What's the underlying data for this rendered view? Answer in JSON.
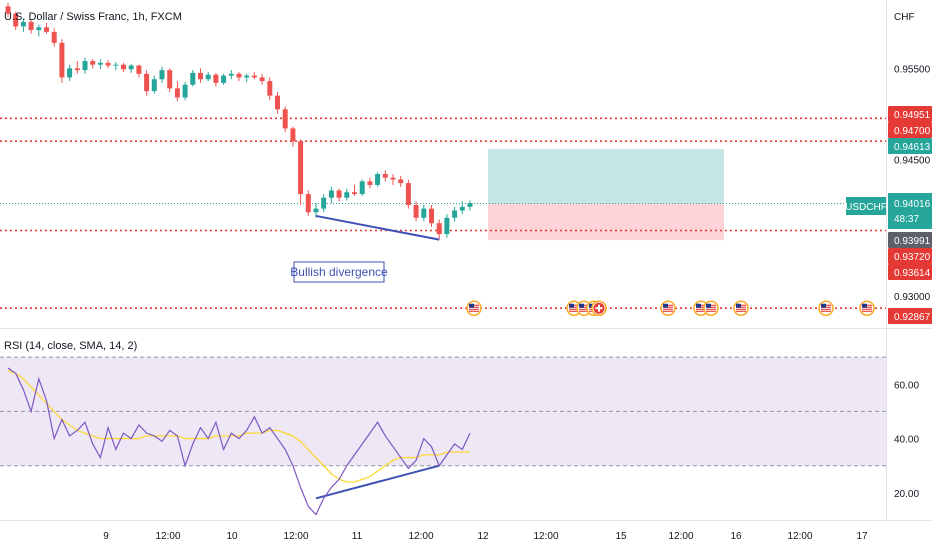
{
  "header": {
    "symbol_title": "U.S. Dollar / Swiss Franc, 1h, FXCM",
    "currency": "CHF"
  },
  "colors": {
    "up": "#26a69a",
    "down": "#ef5350",
    "red_line": "#e53935",
    "profit_zone": "#b2dfdb",
    "loss_zone": "#ffcdd2",
    "divergence": "#3f51b5",
    "rsi_line": "#7e57c2",
    "rsi_ma": "#fdd835",
    "rsi_band": "#ede7f6",
    "price_line": "#26a69a"
  },
  "annotations": {
    "bullish_divergence": "Bullish divergence"
  },
  "rsi": {
    "title": "RSI (14, close, SMA, 14, 2)",
    "ticks": [
      "60.00",
      "40.00",
      "20.00"
    ]
  },
  "price_axis": {
    "ticks": [
      {
        "label": "0.95500",
        "value": 0.955
      },
      {
        "label": "0.94500",
        "value": 0.945
      },
      {
        "label": "0.93000",
        "value": 0.93
      }
    ]
  },
  "price_tags": [
    {
      "label": "0.94951",
      "value": 0.94951,
      "kind": "red"
    },
    {
      "label": "0.94700",
      "value": 0.947,
      "kind": "red"
    },
    {
      "label": "0.94613",
      "value": 0.94613,
      "kind": "green"
    },
    {
      "label": "0.93991",
      "value": 0.93991,
      "kind": "gray"
    },
    {
      "label": "0.93720",
      "value": 0.9372,
      "kind": "red"
    },
    {
      "label": "0.93614",
      "value": 0.93614,
      "kind": "red"
    },
    {
      "label": "0.92867",
      "value": 0.92867,
      "kind": "red"
    }
  ],
  "current_price": {
    "symbol": "USDCHF",
    "price": "0.94016",
    "countdown": "48:37"
  },
  "time_axis": [
    "9",
    "12:00",
    "10",
    "12:00",
    "11",
    "12:00",
    "12",
    "12:00",
    "15",
    "12:00",
    "16",
    "12:00",
    "17"
  ],
  "event_icons": [
    "us-flag",
    "us-flag",
    "us-flag",
    "us-flag",
    "swiss-flag",
    "us-flag",
    "us-flag",
    "us-flag",
    "us-flag",
    "us-flag",
    "us-flag"
  ],
  "chart_data": {
    "type": "candlestick",
    "title": "U.S. Dollar / Swiss Franc, 1h, FXCM",
    "ylabel": "CHF",
    "ylim": [
      0.9265,
      0.9625
    ],
    "position": {
      "entry": 0.94016,
      "target": 0.94613,
      "stop": 0.93614
    },
    "hlines": [
      0.94951,
      0.947,
      0.9372,
      0.92867
    ],
    "series": [
      {
        "name": "candles",
        "values": [
          [
            0.9618,
            0.9622,
            0.9606,
            0.961
          ],
          [
            0.961,
            0.9612,
            0.9592,
            0.9596
          ],
          [
            0.9596,
            0.9605,
            0.959,
            0.9601
          ],
          [
            0.9601,
            0.9603,
            0.9588,
            0.9592
          ],
          [
            0.9592,
            0.9598,
            0.9585,
            0.9595
          ],
          [
            0.9595,
            0.96,
            0.9588,
            0.959
          ],
          [
            0.959,
            0.9594,
            0.9574,
            0.9578
          ],
          [
            0.9578,
            0.9582,
            0.9534,
            0.954
          ],
          [
            0.954,
            0.9554,
            0.9536,
            0.955
          ],
          [
            0.955,
            0.9558,
            0.9544,
            0.9548
          ],
          [
            0.9548,
            0.9562,
            0.9544,
            0.9558
          ],
          [
            0.9558,
            0.956,
            0.955,
            0.9554
          ],
          [
            0.9554,
            0.956,
            0.9549,
            0.9556
          ],
          [
            0.9556,
            0.9559,
            0.955,
            0.9553
          ],
          [
            0.9553,
            0.9557,
            0.9548,
            0.9554
          ],
          [
            0.9554,
            0.9556,
            0.9546,
            0.9549
          ],
          [
            0.9549,
            0.9555,
            0.9545,
            0.9553
          ],
          [
            0.9553,
            0.9554,
            0.954,
            0.9544
          ],
          [
            0.9544,
            0.9548,
            0.952,
            0.9525
          ],
          [
            0.9525,
            0.9542,
            0.9522,
            0.9538
          ],
          [
            0.9538,
            0.9552,
            0.9534,
            0.9548
          ],
          [
            0.9548,
            0.955,
            0.9524,
            0.9528
          ],
          [
            0.9528,
            0.9536,
            0.9514,
            0.9518
          ],
          [
            0.9518,
            0.9535,
            0.9515,
            0.9532
          ],
          [
            0.9532,
            0.9548,
            0.953,
            0.9545
          ],
          [
            0.9545,
            0.955,
            0.9534,
            0.9538
          ],
          [
            0.9538,
            0.9546,
            0.9536,
            0.9543
          ],
          [
            0.9543,
            0.9545,
            0.953,
            0.9534
          ],
          [
            0.9534,
            0.9544,
            0.9532,
            0.9542
          ],
          [
            0.9542,
            0.9548,
            0.9538,
            0.9544
          ],
          [
            0.9544,
            0.9546,
            0.9536,
            0.954
          ],
          [
            0.954,
            0.9544,
            0.9535,
            0.9542
          ],
          [
            0.9542,
            0.9546,
            0.9538,
            0.954
          ],
          [
            0.954,
            0.9544,
            0.9532,
            0.9536
          ],
          [
            0.9536,
            0.954,
            0.9515,
            0.952
          ],
          [
            0.952,
            0.9524,
            0.95,
            0.9505
          ],
          [
            0.9505,
            0.9508,
            0.948,
            0.9484
          ],
          [
            0.9484,
            0.9486,
            0.9464,
            0.947
          ],
          [
            0.947,
            0.9472,
            0.94,
            0.9412
          ],
          [
            0.9412,
            0.9416,
            0.9388,
            0.9392
          ],
          [
            0.9392,
            0.9402,
            0.9386,
            0.9396
          ],
          [
            0.9396,
            0.9412,
            0.9392,
            0.9408
          ],
          [
            0.9408,
            0.942,
            0.9402,
            0.9416
          ],
          [
            0.9416,
            0.9418,
            0.9404,
            0.9408
          ],
          [
            0.9408,
            0.9418,
            0.9405,
            0.9414
          ],
          [
            0.9414,
            0.9422,
            0.941,
            0.9412
          ],
          [
            0.9412,
            0.9428,
            0.941,
            0.9426
          ],
          [
            0.9426,
            0.943,
            0.9418,
            0.9422
          ],
          [
            0.9422,
            0.9436,
            0.942,
            0.9434
          ],
          [
            0.9434,
            0.9438,
            0.9426,
            0.943
          ],
          [
            0.943,
            0.9434,
            0.9422,
            0.9428
          ],
          [
            0.9428,
            0.9432,
            0.942,
            0.9424
          ],
          [
            0.9424,
            0.9428,
            0.9396,
            0.94
          ],
          [
            0.94,
            0.9404,
            0.9382,
            0.9386
          ],
          [
            0.9386,
            0.94,
            0.9382,
            0.9396
          ],
          [
            0.9396,
            0.94,
            0.9376,
            0.938
          ],
          [
            0.938,
            0.9384,
            0.9362,
            0.9368
          ],
          [
            0.9368,
            0.939,
            0.9364,
            0.9386
          ],
          [
            0.9386,
            0.9398,
            0.9382,
            0.9394
          ],
          [
            0.9394,
            0.9404,
            0.939,
            0.9398
          ],
          [
            0.9398,
            0.9405,
            0.9394,
            0.9402
          ]
        ]
      },
      {
        "name": "RSI",
        "values": [
          66,
          64,
          58,
          50,
          62,
          54,
          40,
          47,
          41,
          43,
          46,
          38,
          33,
          44,
          36,
          42,
          40,
          45,
          42,
          41,
          39,
          43,
          41,
          30,
          38,
          44,
          40,
          46,
          36,
          42,
          40,
          43,
          48,
          42,
          44,
          40,
          36,
          30,
          22,
          15,
          12,
          18,
          22,
          25,
          30,
          34,
          38,
          42,
          46,
          41,
          37,
          33,
          29,
          32,
          40,
          37,
          30,
          34,
          38,
          36,
          42
        ]
      },
      {
        "name": "RSI MA",
        "values": [
          65,
          64,
          62,
          59,
          56,
          53,
          50,
          47,
          45,
          43,
          42,
          41,
          40,
          40,
          40,
          40,
          40,
          40,
          41,
          41,
          41,
          41,
          41,
          40,
          40,
          40,
          40,
          41,
          41,
          41,
          41,
          42,
          42,
          42,
          43,
          43,
          42,
          41,
          39,
          36,
          33,
          30,
          27,
          25,
          24,
          24,
          25,
          26,
          28,
          30,
          32,
          33,
          33,
          33,
          34,
          34,
          34,
          35,
          35,
          35,
          35
        ]
      }
    ],
    "divergence": {
      "price": {
        "from": 0.9388,
        "to": 0.9362
      },
      "rsi": {
        "from": 18,
        "to": 30
      }
    },
    "rsi_levels": [
      70,
      50,
      30
    ]
  }
}
